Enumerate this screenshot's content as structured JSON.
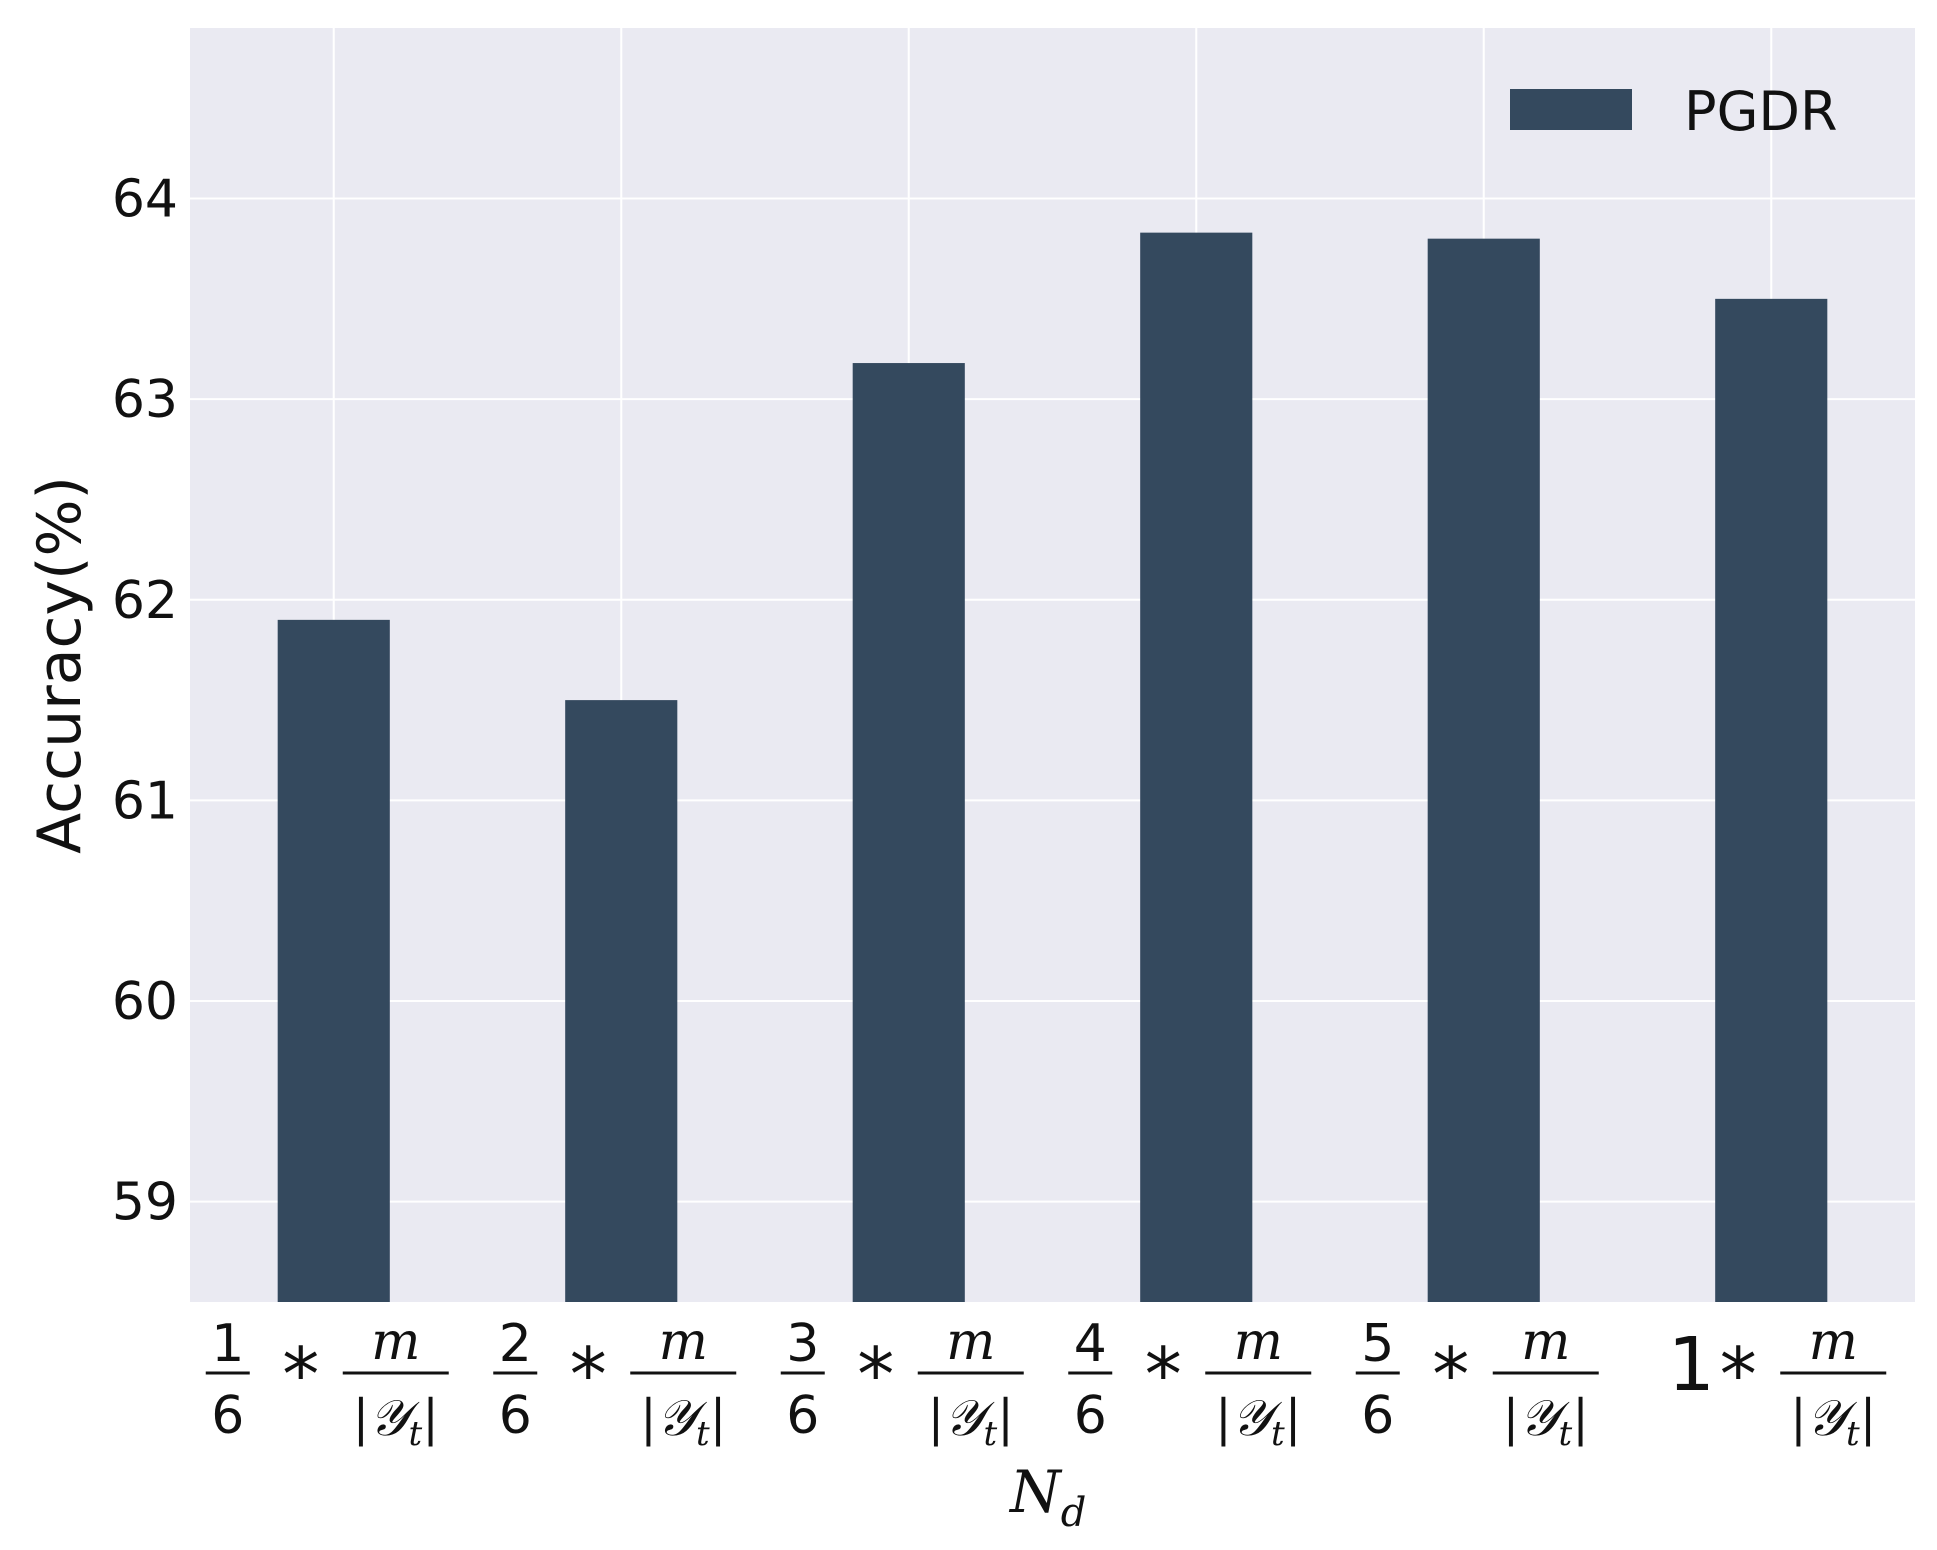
{
  "chart_data": {
    "type": "bar",
    "categories": [
      "1/6 * m/|Y_t|",
      "2/6 * m/|Y_t|",
      "3/6 * m/|Y_t|",
      "4/6 * m/|Y_t|",
      "5/6 * m/|Y_t|",
      "1 * m/|Y_t|"
    ],
    "category_parts": [
      {
        "coef_num": "1",
        "coef_den": "6",
        "op": "*",
        "frac_num": "m",
        "frac_den_script": "𝒴",
        "frac_den_sub": "t"
      },
      {
        "coef_num": "2",
        "coef_den": "6",
        "op": "*",
        "frac_num": "m",
        "frac_den_script": "𝒴",
        "frac_den_sub": "t"
      },
      {
        "coef_num": "3",
        "coef_den": "6",
        "op": "*",
        "frac_num": "m",
        "frac_den_script": "𝒴",
        "frac_den_sub": "t"
      },
      {
        "coef_num": "4",
        "coef_den": "6",
        "op": "*",
        "frac_num": "m",
        "frac_den_script": "𝒴",
        "frac_den_sub": "t"
      },
      {
        "coef_num": "5",
        "coef_den": "6",
        "op": "*",
        "frac_num": "m",
        "frac_den_script": "𝒴",
        "frac_den_sub": "t"
      },
      {
        "coef_whole": "1",
        "op": "*",
        "frac_num": "m",
        "frac_den_script": "𝒴",
        "frac_den_sub": "t"
      }
    ],
    "series": [
      {
        "name": "PGDR",
        "values": [
          61.9,
          61.5,
          63.18,
          63.83,
          63.8,
          63.5
        ],
        "color": "#34495e"
      }
    ],
    "xlabel": "N",
    "xlabel_sub": "d",
    "ylabel": "Accuracy(%)",
    "ylim": [
      58.5,
      64.85
    ],
    "yticks": [
      59,
      60,
      61,
      62,
      63,
      64
    ],
    "grid": true,
    "legend_position": "top-right",
    "background_color": "#eaeaf2",
    "grid_color": "#ffffff"
  }
}
